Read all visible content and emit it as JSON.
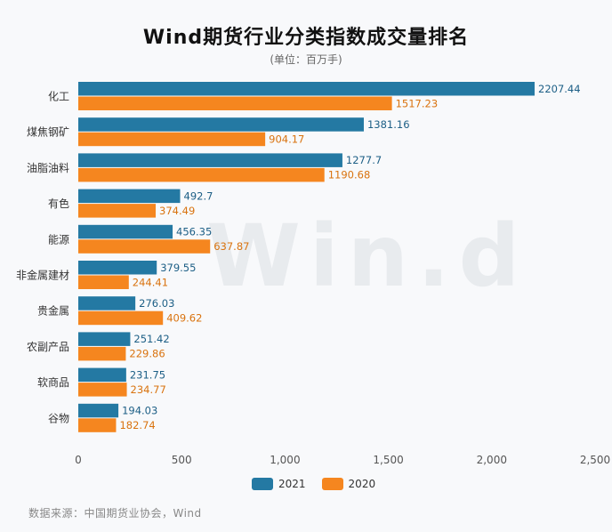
{
  "title": "Wind期货行业分类指数成交量排名",
  "subtitle": "(单位：百万手)",
  "source": "数据来源：中国期货业协会，Wind",
  "watermark": "Win.d",
  "colors": {
    "series_2021": "#2479a3",
    "series_2020": "#f5861f",
    "label_2021": "#1d5f86",
    "label_2020": "#d9730f"
  },
  "chart_data": {
    "type": "bar",
    "orientation": "horizontal",
    "categories": [
      "化工",
      "煤焦钢矿",
      "油脂油料",
      "有色",
      "能源",
      "非金属建材",
      "贵金属",
      "农副产品",
      "软商品",
      "谷物"
    ],
    "series": [
      {
        "name": "2021",
        "values": [
          2207.44,
          1381.16,
          1277.7,
          492.7,
          456.35,
          379.55,
          276.03,
          251.42,
          231.75,
          194.03
        ]
      },
      {
        "name": "2020",
        "values": [
          1517.23,
          904.17,
          1190.68,
          374.49,
          637.87,
          244.41,
          409.62,
          229.86,
          234.77,
          182.74
        ]
      }
    ],
    "xlim": [
      0,
      2500
    ],
    "xticks": [
      0,
      500,
      1000,
      1500,
      2000,
      2500
    ],
    "xtick_labels": [
      "0",
      "500",
      "1,000",
      "1,500",
      "2,000",
      "2,500"
    ],
    "grid": false,
    "legend_position": "bottom-center"
  }
}
